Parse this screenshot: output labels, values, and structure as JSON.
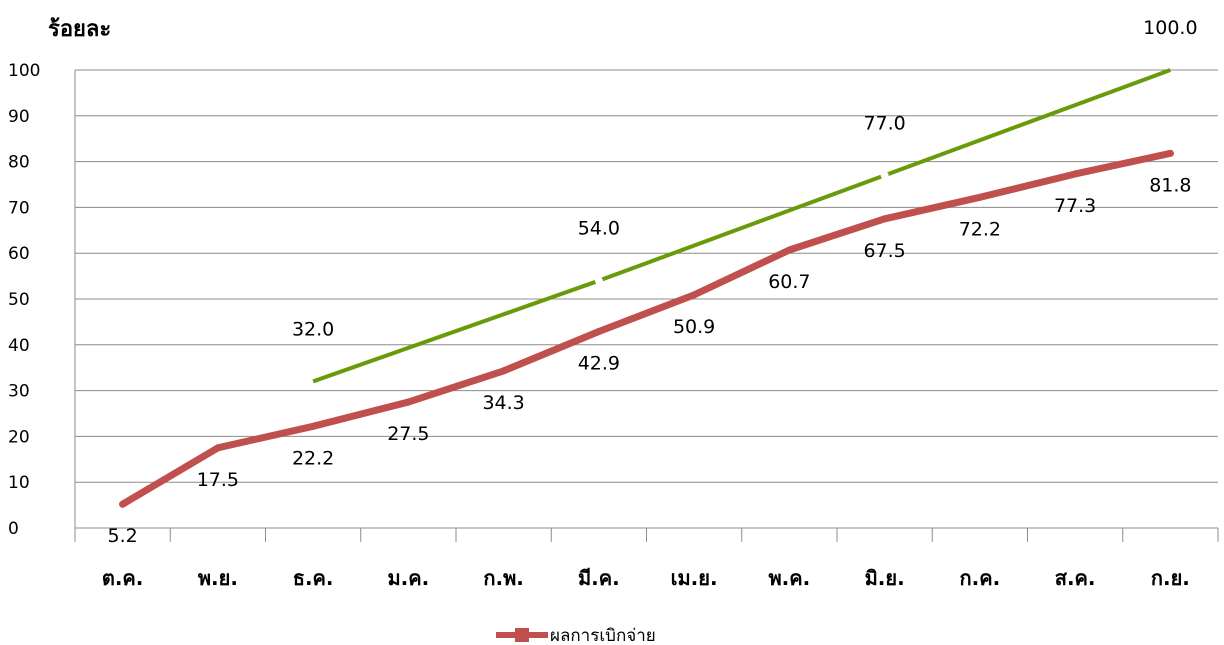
{
  "chart_data": {
    "type": "line",
    "ylabel": "ร้อยละ",
    "xlabel": "",
    "ylim": [
      0,
      100
    ],
    "yticks": [
      "0",
      "10",
      "20",
      "30",
      "40",
      "50",
      "60",
      "70",
      "80",
      "90",
      "100"
    ],
    "categories": [
      "ต.ค.",
      "พ.ย.",
      "ธ.ค.",
      "ม.ค.",
      "ก.พ.",
      "มี.ค.",
      "เม.ย.",
      "พ.ค.",
      "มิ.ย.",
      "ก.ค.",
      "ส.ค.",
      "ก.ย."
    ],
    "grid": true,
    "legend_position": "bottom",
    "series": [
      {
        "name": "ผลการเบิกจ่าย",
        "color": "#c0504d",
        "values": [
          5.2,
          17.5,
          22.2,
          27.5,
          34.3,
          42.9,
          50.9,
          60.7,
          67.5,
          72.2,
          77.3,
          81.8
        ],
        "labels": [
          "5.2",
          "17.5",
          "22.2",
          "27.5",
          "34.3",
          "42.9",
          "50.9",
          "60.7",
          "67.5",
          "72.2",
          "77.3",
          "81.8"
        ]
      },
      {
        "color": "#6a9a0a",
        "points": [
          {
            "category_index": 2,
            "value": 32.0,
            "label": "32.0"
          },
          {
            "category_index": 5,
            "value": 54.0,
            "label": "54.0"
          },
          {
            "category_index": 8,
            "value": 77.0,
            "label": "77.0"
          },
          {
            "category_index": 11,
            "value": 100.0,
            "label": "100.0"
          }
        ]
      }
    ]
  }
}
